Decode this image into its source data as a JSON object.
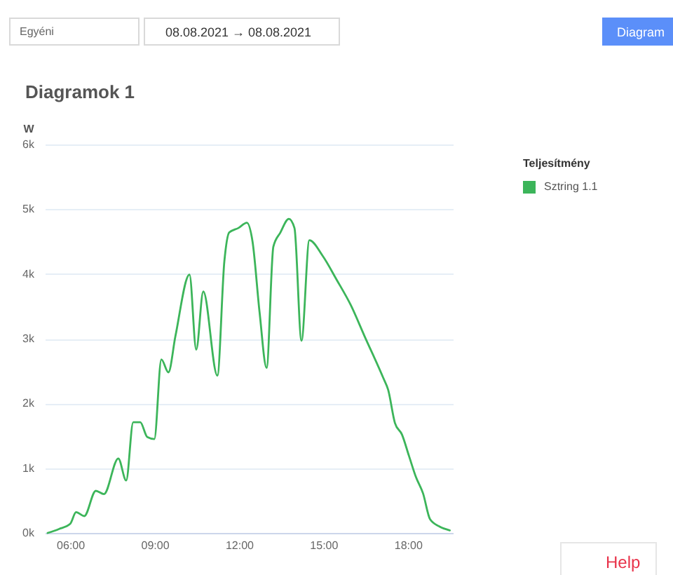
{
  "chart_data": {
    "type": "line",
    "title": "Diagramok 1",
    "ylabel": "W",
    "legend_title": "Teljesítmény",
    "annotations": [
      "Egyéni",
      "08.08.2021 → 08.08.2021",
      "Diagram",
      "Help"
    ],
    "series": [
      {
        "name": "Sztring 1.1",
        "color": "#3cb55a",
        "x": [
          5.2,
          5.6,
          6.0,
          6.21,
          6.5,
          6.91,
          7.2,
          7.71,
          7.99,
          8.24,
          8.49,
          8.74,
          8.99,
          9.24,
          9.49,
          9.74,
          10.24,
          10.48,
          10.73,
          11.23,
          11.48,
          11.65,
          11.98,
          12.28,
          12.48,
          12.73,
          12.98,
          13.22,
          13.47,
          13.77,
          13.97,
          14.22,
          14.5,
          14.97,
          15.47,
          15.97,
          16.46,
          17.13,
          17.3,
          17.54,
          17.79,
          18.04,
          18.29,
          18.54,
          18.79,
          19.12,
          19.49
        ],
        "values": [
          0,
          60,
          140,
          320,
          260,
          650,
          600,
          1150,
          810,
          1710,
          1710,
          1480,
          1450,
          2680,
          2480,
          3040,
          3990,
          2830,
          3730,
          2430,
          4200,
          4640,
          4710,
          4790,
          4500,
          3410,
          2550,
          4420,
          4640,
          4850,
          4710,
          2970,
          4520,
          4280,
          3910,
          3520,
          3040,
          2390,
          2210,
          1700,
          1520,
          1190,
          860,
          610,
          210,
          100,
          40
        ]
      }
    ],
    "xlim": [
      5.1,
      19.6
    ],
    "xticks": [
      {
        "value": 6,
        "label": "06:00"
      },
      {
        "value": 9,
        "label": "09:00"
      },
      {
        "value": 12,
        "label": "12:00"
      },
      {
        "value": 15,
        "label": "15:00"
      },
      {
        "value": 18,
        "label": "18:00"
      }
    ],
    "ylim": [
      0,
      6000
    ],
    "yticks": [
      {
        "value": 0,
        "label": "0k"
      },
      {
        "value": 1000,
        "label": "1k"
      },
      {
        "value": 2000,
        "label": "2k"
      },
      {
        "value": 3000,
        "label": "3k"
      },
      {
        "value": 4000,
        "label": "4k"
      },
      {
        "value": 5000,
        "label": "5k"
      },
      {
        "value": 6000,
        "label": "6k"
      }
    ],
    "grid": "y",
    "legend": "right",
    "line_style": "solid"
  }
}
